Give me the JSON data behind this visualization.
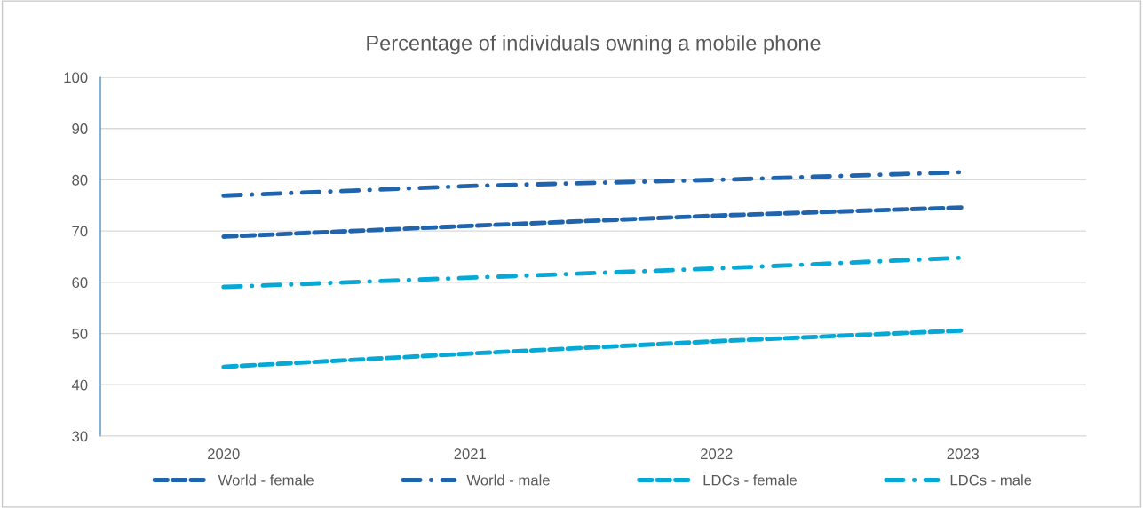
{
  "chart_data": {
    "type": "line",
    "title": "Percentage of individuals owning a mobile phone",
    "categories": [
      "2020",
      "2021",
      "2022",
      "2023"
    ],
    "series": [
      {
        "name": "World - female",
        "color": "#1f64ad",
        "line_style": "dashed",
        "values": [
          68.9,
          71.0,
          73.0,
          74.6
        ]
      },
      {
        "name": "World - male",
        "color": "#1f64ad",
        "line_style": "dashdot",
        "values": [
          76.9,
          78.8,
          80.0,
          81.5
        ]
      },
      {
        "name": "LDCs - female",
        "color": "#06a8d6",
        "line_style": "dashed",
        "values": [
          43.5,
          46.1,
          48.5,
          50.6
        ]
      },
      {
        "name": "LDCs - male",
        "color": "#06a8d6",
        "line_style": "dashdot",
        "values": [
          59.1,
          60.9,
          62.7,
          64.8
        ]
      }
    ],
    "ylim": [
      30,
      100
    ],
    "yticks": [
      30,
      40,
      50,
      60,
      70,
      80,
      90,
      100
    ],
    "grid": "y",
    "legend": "bottom"
  }
}
